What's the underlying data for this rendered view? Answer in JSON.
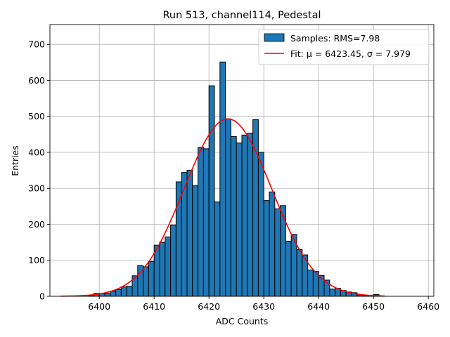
{
  "chart_data": {
    "type": "bar",
    "title": "Run 513, channel114, Pedestal",
    "xlabel": "ADC Counts",
    "ylabel": "Entries",
    "xlim": [
      6391,
      6461
    ],
    "ylim": [
      0,
      755
    ],
    "xticks": [
      6400,
      6410,
      6420,
      6430,
      6440,
      6450,
      6460
    ],
    "yticks": [
      0,
      100,
      200,
      300,
      400,
      500,
      600,
      700
    ],
    "grid": true,
    "legend_position": "top-right",
    "bin_width": 1,
    "bins": [
      [
        6398,
        2
      ],
      [
        6399,
        8
      ],
      [
        6400,
        8
      ],
      [
        6401,
        8
      ],
      [
        6402,
        14
      ],
      [
        6403,
        19
      ],
      [
        6404,
        26
      ],
      [
        6405,
        28
      ],
      [
        6406,
        57
      ],
      [
        6407,
        85
      ],
      [
        6408,
        82
      ],
      [
        6409,
        97
      ],
      [
        6410,
        142
      ],
      [
        6411,
        150
      ],
      [
        6412,
        165
      ],
      [
        6413,
        198
      ],
      [
        6414,
        318
      ],
      [
        6415,
        344
      ],
      [
        6416,
        350
      ],
      [
        6417,
        307
      ],
      [
        6418,
        414
      ],
      [
        6419,
        410
      ],
      [
        6420,
        585
      ],
      [
        6421,
        262
      ],
      [
        6422,
        651
      ],
      [
        6423,
        493
      ],
      [
        6424,
        444
      ],
      [
        6425,
        426
      ],
      [
        6426,
        448
      ],
      [
        6427,
        453
      ],
      [
        6428,
        491
      ],
      [
        6429,
        400
      ],
      [
        6430,
        266
      ],
      [
        6431,
        290
      ],
      [
        6432,
        243
      ],
      [
        6433,
        252
      ],
      [
        6434,
        153
      ],
      [
        6435,
        172
      ],
      [
        6436,
        130
      ],
      [
        6437,
        115
      ],
      [
        6438,
        73
      ],
      [
        6439,
        69
      ],
      [
        6440,
        58
      ],
      [
        6441,
        45
      ],
      [
        6442,
        20
      ],
      [
        6443,
        22
      ],
      [
        6444,
        16
      ],
      [
        6445,
        12
      ],
      [
        6446,
        10
      ],
      [
        6447,
        4
      ],
      [
        6448,
        2
      ],
      [
        6449,
        2
      ],
      [
        6450,
        5
      ],
      [
        6451,
        1
      ]
    ],
    "series": [
      {
        "name": "Samples: RMS=7.98",
        "kind": "histogram",
        "color": "#1f77b4",
        "edgecolor": "#000000"
      },
      {
        "name": "Fit: μ = 6423.45, σ = 7.979",
        "kind": "gaussian",
        "color": "#ff0000",
        "mu": 6423.45,
        "sigma": 7.979,
        "amplitude": 493,
        "x_range": [
          6393,
          6452
        ]
      }
    ]
  }
}
